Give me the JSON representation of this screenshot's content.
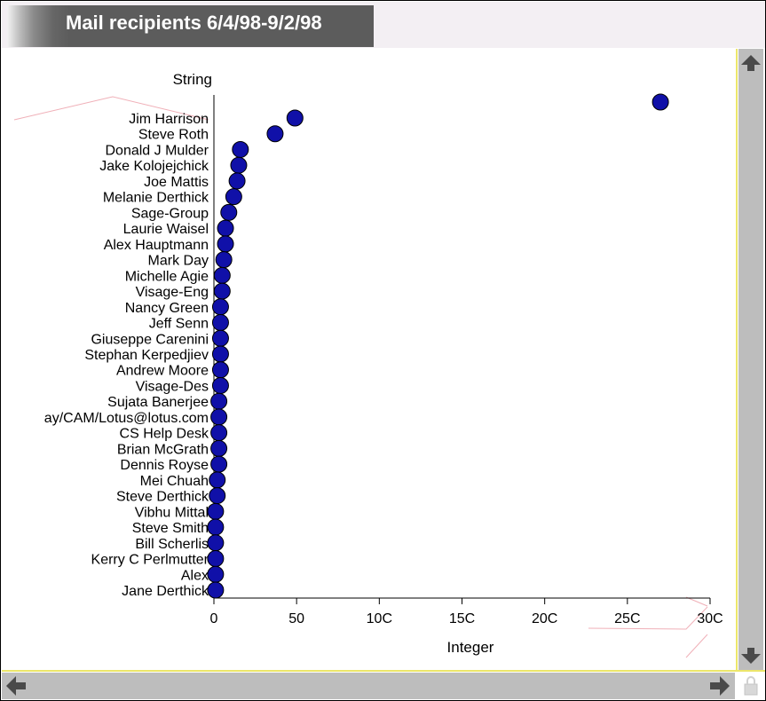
{
  "window": {
    "title": "Mail recipients 6/4/98-9/2/98"
  },
  "chart_data": {
    "type": "scatter",
    "xlabel": "Integer",
    "ylabel": "String",
    "xlim": [
      0,
      300
    ],
    "x_ticks": [
      "0",
      "50",
      "10C",
      "15C",
      "20C",
      "25C",
      "30C"
    ],
    "grid": false,
    "categories": [
      "Jim Harrison",
      "Steve Roth",
      "Donald J Mulder",
      "Jake Kolojejchick",
      "Joe Mattis",
      "Melanie Derthick",
      "Sage-Group",
      "Laurie Waisel",
      "Alex Hauptmann",
      "Mark Day",
      "Michelle Agie",
      "Visage-Eng",
      "Nancy Green",
      "Jeff Senn",
      "Giuseppe Carenini",
      "Stephan Kerpedjiev",
      "Andrew Moore",
      "Visage-Des",
      "Sujata Banerjee",
      "ay/CAM/Lotus@lotus.com",
      "CS Help Desk",
      "Brian McGrath",
      "Dennis Royse",
      "Mei Chuah",
      "Steve Derthick",
      "Vibhu Mittal",
      "Steve Smith",
      "Bill Scherlis",
      "Kerry C Perlmutter",
      "Alex",
      "Jane Derthick"
    ],
    "values": [
      49,
      37,
      16,
      15,
      14,
      12,
      9,
      7,
      7,
      6,
      5,
      5,
      4,
      4,
      4,
      4,
      4,
      4,
      3,
      3,
      3,
      3,
      3,
      2,
      2,
      1,
      1,
      1,
      1,
      1,
      1
    ],
    "outlier_point": {
      "x": 270,
      "label": ""
    },
    "point_color": "#1010a8"
  },
  "colors": {
    "title_bg": "#5c5c5c",
    "scrollbar": "#bdbdbd",
    "accent_border": "#ece66a"
  },
  "icons": {
    "scroll_up": "arrow-up-icon",
    "scroll_down": "arrow-down-icon",
    "scroll_left": "arrow-left-icon",
    "scroll_right": "arrow-right-icon",
    "corner": "lock-icon"
  }
}
